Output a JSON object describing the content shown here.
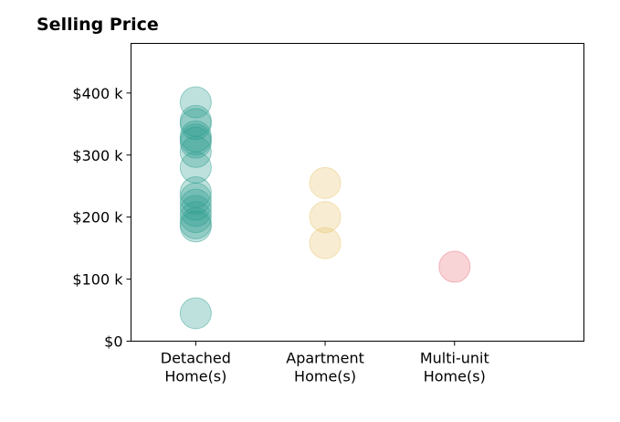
{
  "chart_data": {
    "type": "scatter",
    "title": "Selling Price",
    "categories": [
      "Detached\nHome(s)",
      "Apartment\nHome(s)",
      "Multi-unit\nHome(s)"
    ],
    "y_ticks": [
      {
        "value": 0,
        "label": "$0"
      },
      {
        "value": 100000,
        "label": "$100 k"
      },
      {
        "value": 200000,
        "label": "$200 k"
      },
      {
        "value": 300000,
        "label": "$300 k"
      },
      {
        "value": 400000,
        "label": "$400 k"
      }
    ],
    "ylim": [
      0,
      480000
    ],
    "xlim": [
      -0.5,
      3.0
    ],
    "grid": false,
    "series": [
      {
        "category_index": 0,
        "color": "#2a9d8f",
        "values": [
          385000,
          355000,
          350000,
          330000,
          325000,
          320000,
          305000,
          280000,
          240000,
          230000,
          220000,
          210000,
          200000,
          190000,
          185000,
          45000
        ]
      },
      {
        "category_index": 1,
        "color": "#e9c46a",
        "values": [
          255000,
          200000,
          158000
        ]
      },
      {
        "category_index": 2,
        "color": "#e76f7a",
        "values": [
          120000
        ]
      }
    ]
  }
}
